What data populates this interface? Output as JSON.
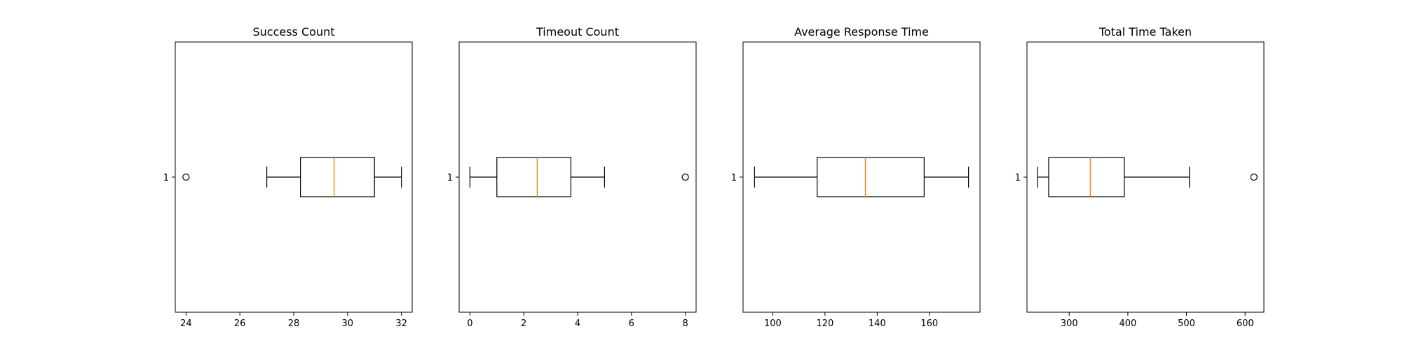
{
  "chart_data": [
    {
      "type": "boxplot",
      "title": "Success Count",
      "orientation": "horizontal",
      "y_tick_labels": [
        "1"
      ],
      "xlim": [
        23.6,
        32.4
      ],
      "xticks": [
        24,
        26,
        28,
        30,
        32
      ],
      "box": {
        "whisker_low": 27,
        "q1": 28.25,
        "median": 29.5,
        "q3": 31,
        "whisker_high": 32,
        "outliers": [
          24
        ]
      }
    },
    {
      "type": "boxplot",
      "title": "Timeout Count",
      "orientation": "horizontal",
      "y_tick_labels": [
        "1"
      ],
      "xlim": [
        -0.4,
        8.4
      ],
      "xticks": [
        0,
        2,
        4,
        6,
        8
      ],
      "box": {
        "whisker_low": 0,
        "q1": 1,
        "median": 2.5,
        "q3": 3.75,
        "whisker_high": 5,
        "outliers": [
          8
        ]
      }
    },
    {
      "type": "boxplot",
      "title": "Average Response Time",
      "orientation": "horizontal",
      "y_tick_labels": [
        "1"
      ],
      "xlim": [
        88.6,
        179.4
      ],
      "xticks": [
        100,
        120,
        140,
        160
      ],
      "box": {
        "whisker_low": 93,
        "q1": 117,
        "median": 135.5,
        "q3": 158,
        "whisker_high": 175,
        "outliers": []
      }
    },
    {
      "type": "boxplot",
      "title": "Total Time Taken",
      "orientation": "horizontal",
      "y_tick_labels": [
        "1"
      ],
      "xlim": [
        228,
        632
      ],
      "xticks": [
        300,
        400,
        500,
        600
      ],
      "box": {
        "whisker_low": 246,
        "q1": 265,
        "median": 336,
        "q3": 394,
        "whisker_high": 505,
        "outliers": [
          615
        ]
      }
    }
  ],
  "colors": {
    "box": "#000000",
    "median": "#ff7f0e",
    "axes": "#000000"
  }
}
